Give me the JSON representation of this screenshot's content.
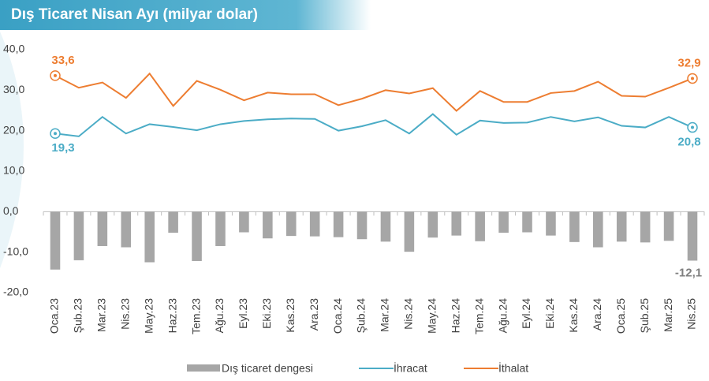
{
  "chart_data": {
    "type": "bar",
    "title": "Dış Ticaret Nisan Ayı (milyar dolar)",
    "categories": [
      "Oca.23",
      "Şub.23",
      "Mar.23",
      "Nis.23",
      "May.23",
      "Haz.23",
      "Tem.23",
      "Ağu.23",
      "Eyl.23",
      "Eki.23",
      "Kas.23",
      "Ara.23",
      "Oca.24",
      "Şub.24",
      "Mar.24",
      "Nis.24",
      "May.24",
      "Haz.24",
      "Tem.24",
      "Ağu.24",
      "Eyl.24",
      "Eki.24",
      "Kas.24",
      "Ara.24",
      "Oca.25",
      "Şub.25",
      "Mar.25",
      "Nis.25"
    ],
    "series": [
      {
        "name": "Dış ticaret dengesi",
        "type": "bar",
        "color": "#a6a6a6",
        "values": [
          -14.3,
          -12.0,
          -8.5,
          -8.8,
          -12.5,
          -5.2,
          -12.2,
          -8.5,
          -5.1,
          -6.6,
          -6.0,
          -6.1,
          -6.3,
          -6.8,
          -7.4,
          -9.9,
          -6.4,
          -5.9,
          -7.3,
          -5.2,
          -5.1,
          -5.9,
          -7.5,
          -8.8,
          -7.4,
          -7.6,
          -7.2,
          -12.1
        ],
        "value_labels": [
          null,
          null,
          null,
          null,
          null,
          null,
          null,
          null,
          null,
          null,
          null,
          null,
          null,
          null,
          null,
          null,
          null,
          null,
          null,
          null,
          null,
          null,
          null,
          null,
          null,
          null,
          null,
          "-12,1"
        ]
      },
      {
        "name": "İhracat",
        "type": "line",
        "color": "#4bacc6",
        "values": [
          19.3,
          18.6,
          23.4,
          19.3,
          21.6,
          20.9,
          20.1,
          21.6,
          22.4,
          22.8,
          23.0,
          22.9,
          20.0,
          21.1,
          22.6,
          19.3,
          24.1,
          19.0,
          22.5,
          21.9,
          22.0,
          23.4,
          22.3,
          23.3,
          21.2,
          20.8,
          23.4,
          20.8
        ],
        "value_labels": [
          "19,3",
          null,
          null,
          null,
          null,
          null,
          null,
          null,
          null,
          null,
          null,
          null,
          null,
          null,
          null,
          null,
          null,
          null,
          null,
          null,
          null,
          null,
          null,
          null,
          null,
          null,
          null,
          "20,8"
        ]
      },
      {
        "name": "İthalat",
        "type": "line",
        "color": "#ed7d31",
        "values": [
          33.6,
          30.6,
          31.9,
          28.1,
          34.1,
          26.1,
          32.3,
          30.1,
          27.5,
          29.4,
          29.0,
          29.0,
          26.3,
          27.9,
          30.0,
          29.2,
          30.5,
          24.9,
          29.8,
          27.1,
          27.1,
          29.3,
          29.8,
          32.1,
          28.6,
          28.4,
          30.6,
          32.9
        ],
        "value_labels": [
          "33,6",
          null,
          null,
          null,
          null,
          null,
          null,
          null,
          null,
          null,
          null,
          null,
          null,
          null,
          null,
          null,
          null,
          null,
          null,
          null,
          null,
          null,
          null,
          null,
          null,
          null,
          null,
          "32,9"
        ]
      }
    ],
    "ylim": [
      -20,
      40
    ],
    "yticks": [
      {
        "value": -20,
        "label": "-20,0"
      },
      {
        "value": -10,
        "label": "-10,0"
      },
      {
        "value": 0,
        "label": "0,0"
      },
      {
        "value": 10,
        "label": "10,0"
      },
      {
        "value": 20,
        "label": "20,0"
      },
      {
        "value": 30,
        "label": "30,0"
      },
      {
        "value": 40,
        "label": "40,0"
      }
    ],
    "grid": false,
    "legend": "bottom"
  }
}
